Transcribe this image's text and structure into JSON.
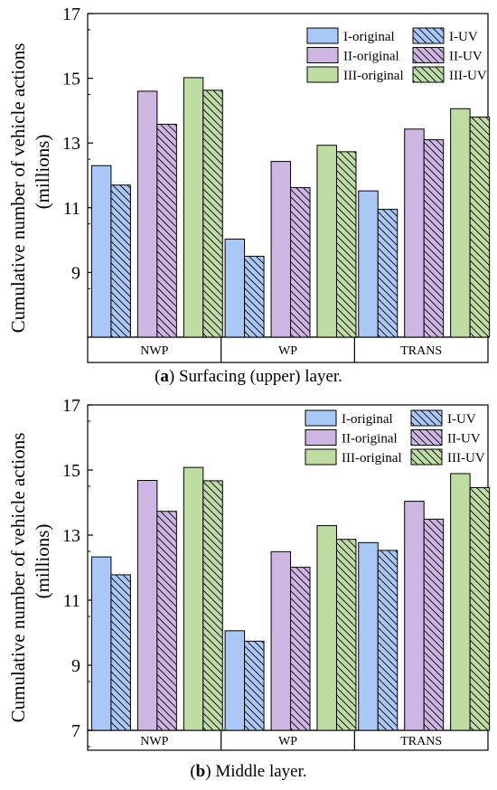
{
  "figure": {
    "ylabel_line1": "Cumulative number of vehicle actions",
    "ylabel_line2": "(millions)"
  },
  "captions": [
    {
      "letter": "a",
      "open": "(",
      "close": ")",
      "text": " Surfacing (upper) layer."
    },
    {
      "letter": "b",
      "open": "(",
      "close": ")",
      "text": " Middle layer."
    }
  ],
  "chart_data": [
    {
      "type": "bar",
      "title": "Surfacing (upper) layer",
      "ylabel": "Cumulative number of vehicle actions (millions)",
      "ylim": [
        7,
        17
      ],
      "yticks": [
        "9",
        "11",
        "13",
        "15",
        "17"
      ],
      "categories": [
        "NWP",
        "WP",
        "TRANS"
      ],
      "legend_position": "top-right",
      "series": [
        {
          "name": "I-original",
          "values": [
            12.3,
            10.03,
            11.52
          ]
        },
        {
          "name": "I-UV",
          "values": [
            11.7,
            9.5,
            10.95
          ]
        },
        {
          "name": "II-original",
          "values": [
            14.6,
            12.43,
            13.43
          ]
        },
        {
          "name": "II-UV",
          "values": [
            13.58,
            11.62,
            13.1
          ]
        },
        {
          "name": "III-original",
          "values": [
            15.02,
            12.93,
            14.06
          ]
        },
        {
          "name": "III-UV",
          "values": [
            14.63,
            12.73,
            13.8
          ]
        }
      ]
    },
    {
      "type": "bar",
      "title": "Middle layer",
      "ylabel": "Cumulative number of vehicle actions (millions)",
      "ylim": [
        7,
        17
      ],
      "yticks": [
        "7",
        "9",
        "11",
        "13",
        "15",
        "17"
      ],
      "categories": [
        "NWP",
        "WP",
        "TRANS"
      ],
      "legend_position": "top-right",
      "series": [
        {
          "name": "I-original",
          "values": [
            12.33,
            10.06,
            12.77
          ]
        },
        {
          "name": "I-UV",
          "values": [
            11.78,
            9.74,
            12.53
          ]
        },
        {
          "name": "II-original",
          "values": [
            14.68,
            12.49,
            14.04
          ]
        },
        {
          "name": "II-UV",
          "values": [
            13.73,
            12.01,
            13.49
          ]
        },
        {
          "name": "III-original",
          "values": [
            15.08,
            13.29,
            14.89
          ]
        },
        {
          "name": "III-UV",
          "values": [
            14.67,
            12.87,
            14.46
          ]
        }
      ]
    }
  ],
  "colors": {
    "I": "#a9c8f5",
    "II": "#cdb6e2",
    "III": "#bfdca3",
    "stroke": "#000000"
  }
}
